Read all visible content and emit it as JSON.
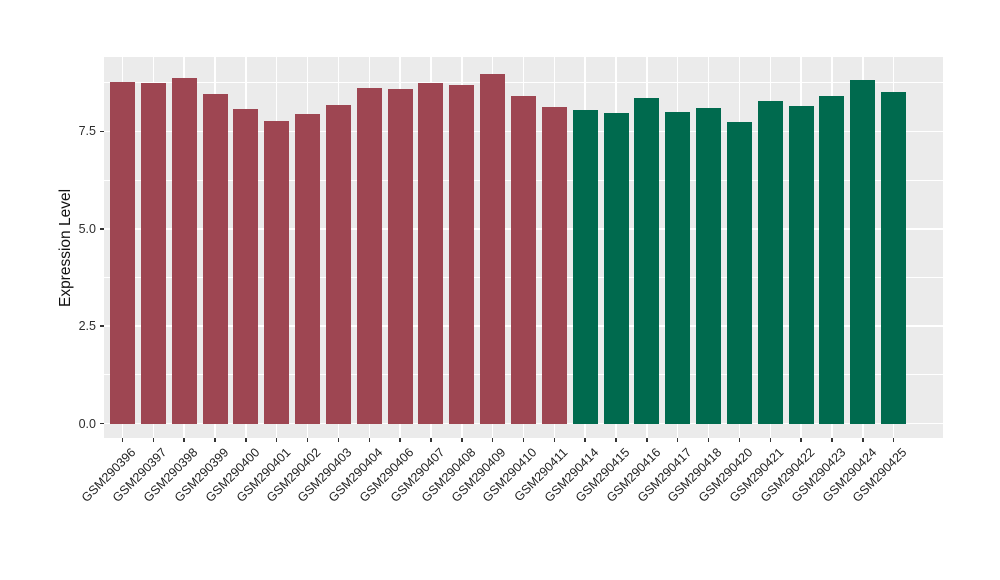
{
  "chart_data": {
    "type": "bar",
    "title": "",
    "xlabel": "",
    "ylabel": "Expression Level",
    "legend_position": "none",
    "grid": true,
    "panel_bg": "#EBEBEB",
    "grid_color": "#FFFFFF",
    "axis_text_color": "#2e2e2e",
    "tick_mark_color": "#333333",
    "ylim": [
      -0.37,
      9.41
    ],
    "y_ticks": [
      {
        "value": 0.0,
        "label": "0.0"
      },
      {
        "value": 2.5,
        "label": "2.5"
      },
      {
        "value": 5.0,
        "label": "5.0"
      },
      {
        "value": 7.5,
        "label": "7.5"
      }
    ],
    "y_minor_ticks": [
      1.25,
      3.75,
      6.25,
      8.75
    ],
    "group_colors": {
      "red": "#9E4652",
      "green": "#006A4E"
    },
    "categories": [
      "GSM290396",
      "GSM290397",
      "GSM290398",
      "GSM290399",
      "GSM290400",
      "GSM290401",
      "GSM290402",
      "GSM290403",
      "GSM290404",
      "GSM290406",
      "GSM290407",
      "GSM290408",
      "GSM290409",
      "GSM290410",
      "GSM290411",
      "GSM290414",
      "GSM290415",
      "GSM290416",
      "GSM290417",
      "GSM290418",
      "GSM290420",
      "GSM290421",
      "GSM290422",
      "GSM290423",
      "GSM290424",
      "GSM290425"
    ],
    "values": [
      8.77,
      8.75,
      8.87,
      8.45,
      8.08,
      7.77,
      7.94,
      8.19,
      8.62,
      8.6,
      8.75,
      8.7,
      8.97,
      8.4,
      8.13,
      8.05,
      7.98,
      8.37,
      8.01,
      8.09,
      7.75,
      8.28,
      8.16,
      8.41,
      8.82,
      8.5
    ],
    "group_keys": [
      "red",
      "red",
      "red",
      "red",
      "red",
      "red",
      "red",
      "red",
      "red",
      "red",
      "red",
      "red",
      "red",
      "red",
      "red",
      "green",
      "green",
      "green",
      "green",
      "green",
      "green",
      "green",
      "green",
      "green",
      "green",
      "green"
    ]
  }
}
